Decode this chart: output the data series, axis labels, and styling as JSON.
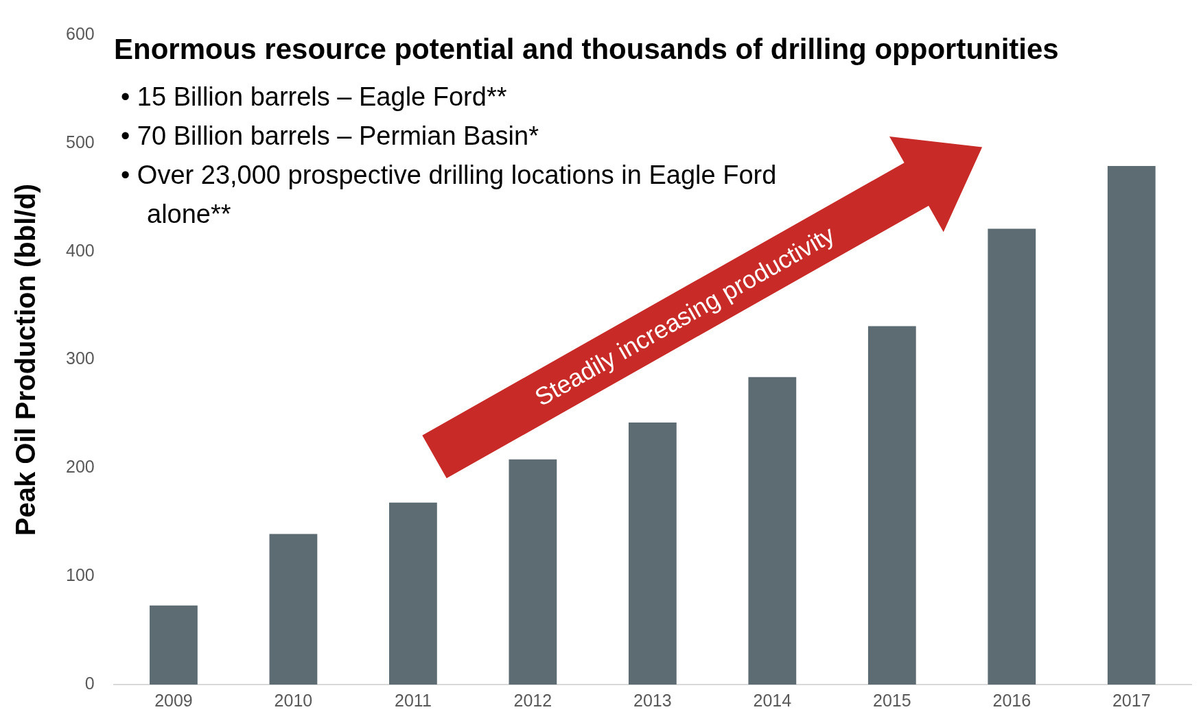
{
  "chart_data": {
    "type": "bar",
    "title": "Enormous resource potential and thousands of drilling opportunities",
    "ylabel": "Peak Oil Production (bbl/d)",
    "categories": [
      "2009",
      "2010",
      "2011",
      "2012",
      "2013",
      "2014",
      "2015",
      "2016",
      "2017"
    ],
    "values": [
      73,
      139,
      168,
      208,
      242,
      284,
      331,
      421,
      479
    ],
    "color": "#5d6b73",
    "ylim": [
      0,
      600
    ],
    "yticks": [
      0,
      100,
      200,
      300,
      400,
      500,
      600
    ],
    "grid": false,
    "legend": false,
    "annotations": [
      "• 15 Billion barrels – Eagle Ford**",
      "• 70 Billion barrels – Permian Basin*",
      "• Over 23,000 prospective drilling locations in Eagle Ford alone**",
      "Steadily increasing productivity"
    ]
  }
}
